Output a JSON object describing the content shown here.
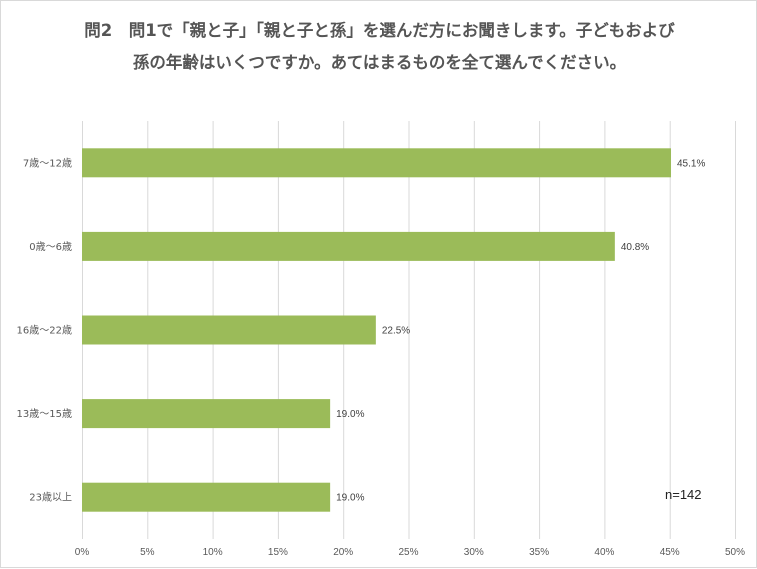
{
  "chart_data": {
    "type": "bar",
    "orientation": "horizontal",
    "title_lines": [
      "問2　問1で「親と子」「親と子と孫」を選んだ方にお聞きします。子どもおよび",
      "孫の年齢はいくつですか。あてはまるものを全て選んでください。"
    ],
    "categories": [
      "7歳～12歳",
      "0歳～6歳",
      "16歳～22歳",
      "13歳～15歳",
      "23歳以上"
    ],
    "values": [
      45.1,
      40.8,
      22.5,
      19.0,
      19.0
    ],
    "data_labels": [
      "45.1%",
      "40.8%",
      "22.5%",
      "19.0%",
      "19.0%"
    ],
    "xlim": [
      0,
      50
    ],
    "x_ticks": [
      0,
      5,
      10,
      15,
      20,
      25,
      30,
      35,
      40,
      45,
      50
    ],
    "x_tick_labels": [
      "0%",
      "5%",
      "10%",
      "15%",
      "20%",
      "25%",
      "30%",
      "35%",
      "40%",
      "45%",
      "50%"
    ],
    "grid": true,
    "annotation": "n=142",
    "bar_color": "#9bbb59"
  }
}
